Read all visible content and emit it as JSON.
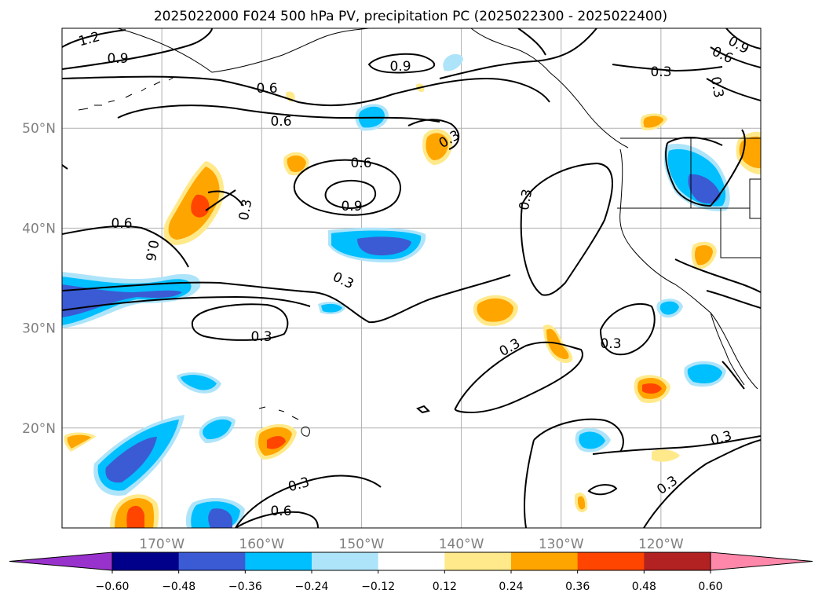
{
  "title": "2025022000 F024 500 hPa PV, precipitation PC (2025022300 - 2025022400)",
  "map": {
    "projection": "cylindrical",
    "lon_range": [
      -180,
      -110
    ],
    "lat_range": [
      10,
      60
    ],
    "gridlines": true,
    "lat_ticks": [
      {
        "value": 20,
        "label": "20°N"
      },
      {
        "value": 30,
        "label": "30°N"
      },
      {
        "value": 40,
        "label": "40°N"
      },
      {
        "value": 50,
        "label": "50°N"
      }
    ],
    "lon_ticks": [
      {
        "value": -170,
        "label": "170°W"
      },
      {
        "value": -160,
        "label": "160°W"
      },
      {
        "value": -150,
        "label": "150°W"
      },
      {
        "value": -140,
        "label": "140°W"
      },
      {
        "value": -130,
        "label": "130°W"
      },
      {
        "value": -120,
        "label": "120°W"
      }
    ],
    "contour_labels": [
      "1.2",
      "0.9",
      "0.9",
      "0.9",
      "0.9",
      "0.6",
      "0.6",
      "0.6",
      "0.6",
      "0.6",
      "0.6",
      "0.6",
      "0.3",
      "0.3",
      "0.3",
      "0.3",
      "0.3",
      "0.3",
      "0.3",
      "0.3",
      "0.3",
      "0.3",
      "0.3",
      "0.3"
    ]
  },
  "colorbar": {
    "extend": "both",
    "tick_labels": [
      "−0.60",
      "−0.48",
      "−0.36",
      "−0.24",
      "−0.12",
      "0.12",
      "0.24",
      "0.36",
      "0.48",
      "0.60"
    ],
    "colors": [
      "#9932cc",
      "#00008b",
      "#3a5bd4",
      "#00bfff",
      "#aee4fa",
      "#ffffff",
      "#ffe98a",
      "#ffa500",
      "#ff4500",
      "#b22222",
      "#ff88aa"
    ]
  }
}
